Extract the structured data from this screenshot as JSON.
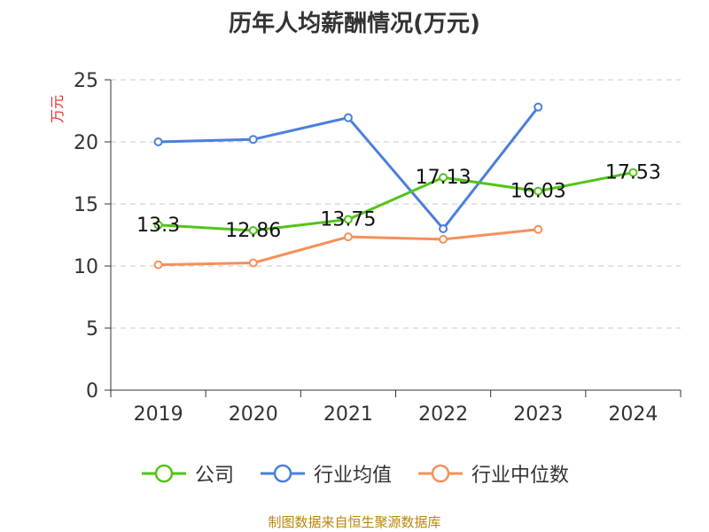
{
  "chart_data": {
    "type": "line",
    "title": "历年人均薪酬情况(万元)",
    "ylabel": "万元",
    "ylim": [
      0,
      25
    ],
    "yticks": [
      0,
      5,
      10,
      15,
      20,
      25
    ],
    "categories": [
      "2019",
      "2020",
      "2021",
      "2022",
      "2023",
      "2024"
    ],
    "grid": true,
    "legend": "bottom",
    "series": [
      {
        "name": "公司",
        "color": "#52c41a",
        "values": [
          13.3,
          12.86,
          13.75,
          17.13,
          16.03,
          17.53
        ],
        "labels": [
          "13.3",
          "12.86",
          "13.75",
          "17.13",
          "16.03",
          "17.53"
        ]
      },
      {
        "name": "行业均值",
        "color": "#4a7fdc",
        "values": [
          20.0,
          20.2,
          21.95,
          13.0,
          22.8,
          null
        ]
      },
      {
        "name": "行业中位数",
        "color": "#f5905a",
        "values": [
          10.1,
          10.25,
          12.35,
          12.15,
          12.95,
          null
        ]
      }
    ]
  },
  "source": "制图数据来自恒生聚源数据库"
}
